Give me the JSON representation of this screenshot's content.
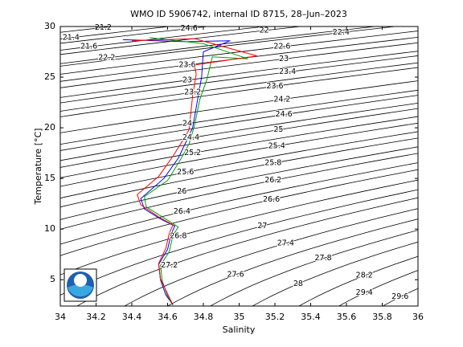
{
  "chart_data": {
    "type": "line",
    "title": "WMO ID 5906742, internal ID 8715, 28–Jun–2023",
    "x_label": "Salinity",
    "y_label": "Temperature [°C]",
    "xlim": [
      34,
      36
    ],
    "ylim": [
      2.4,
      30
    ],
    "xticks": [
      34,
      34.2,
      34.4,
      34.6,
      34.8,
      35,
      35.2,
      35.4,
      35.6,
      35.8,
      36
    ],
    "yticks": [
      5,
      10,
      15,
      20,
      25,
      30
    ],
    "series": [
      {
        "color": "#0000ff",
        "x": [
          34.35,
          34.7,
          34.95,
          34.8,
          34.79,
          34.77,
          34.74,
          34.7,
          34.66,
          34.58,
          34.45,
          34.47,
          34.56,
          34.64,
          34.62,
          34.6,
          34.55,
          34.56,
          34.59,
          34.63
        ],
        "values": [
          28.7,
          28.5,
          28.6,
          27.5,
          25,
          23,
          20,
          18.5,
          17,
          15,
          13,
          12,
          11,
          10.3,
          9.5,
          8,
          6.5,
          5,
          3.5,
          2.5
        ]
      },
      {
        "color": "#00a000",
        "x": [
          34.5,
          34.8,
          35.05,
          34.85,
          34.82,
          34.78,
          34.75,
          34.72,
          34.67,
          34.6,
          34.47,
          34.48,
          34.58,
          34.66,
          34.63,
          34.61,
          34.56,
          34.57,
          34.6,
          34.63
        ],
        "values": [
          28.9,
          28.3,
          26.8,
          27,
          24.8,
          22.8,
          20.2,
          18.4,
          16.8,
          14.8,
          13.2,
          12.2,
          11.1,
          10.2,
          9.4,
          7.8,
          6.4,
          4.9,
          3.4,
          2.5
        ]
      },
      {
        "color": "#ff0000",
        "x": [
          34.4,
          34.75,
          35.1,
          34.75,
          34.76,
          34.74,
          34.72,
          34.68,
          34.63,
          34.55,
          34.43,
          34.45,
          34.55,
          34.63,
          34.61,
          34.59,
          34.55,
          34.56,
          34.6,
          34.63
        ],
        "values": [
          28.6,
          28.8,
          27.1,
          26.2,
          25.3,
          23.2,
          19.8,
          18.6,
          17.2,
          15.2,
          13.4,
          12.4,
          11.2,
          10.4,
          9.6,
          8.1,
          6.6,
          5.1,
          3.6,
          2.5
        ]
      }
    ],
    "annotations": [
      {
        "text": "21.2",
        "x": 34.24,
        "y": 29.9
      },
      {
        "text": "21.4",
        "x": 34.06,
        "y": 28.9
      },
      {
        "text": "21.6",
        "x": 34.16,
        "y": 28.0
      },
      {
        "text": "22.2",
        "x": 34.26,
        "y": 26.9
      },
      {
        "text": "22",
        "x": 35.14,
        "y": 29.6
      },
      {
        "text": "22.4",
        "x": 35.57,
        "y": 29.4
      },
      {
        "text": "22.6",
        "x": 35.24,
        "y": 28.0
      },
      {
        "text": "23",
        "x": 35.25,
        "y": 26.8
      },
      {
        "text": "23.4",
        "x": 35.27,
        "y": 25.5
      },
      {
        "text": "23.6",
        "x": 35.2,
        "y": 24.1
      },
      {
        "text": "24.2",
        "x": 35.24,
        "y": 22.8
      },
      {
        "text": "24.6",
        "x": 35.25,
        "y": 21.3
      },
      {
        "text": "25",
        "x": 35.22,
        "y": 19.8
      },
      {
        "text": "25.4",
        "x": 35.21,
        "y": 18.2
      },
      {
        "text": "25.8",
        "x": 35.19,
        "y": 16.5
      },
      {
        "text": "26.2",
        "x": 35.19,
        "y": 14.8
      },
      {
        "text": "26.6",
        "x": 35.18,
        "y": 12.9
      },
      {
        "text": "27",
        "x": 35.13,
        "y": 10.3
      },
      {
        "text": "27.4",
        "x": 35.26,
        "y": 8.6
      },
      {
        "text": "27.8",
        "x": 35.47,
        "y": 7.1
      },
      {
        "text": "28.2",
        "x": 35.7,
        "y": 5.4
      },
      {
        "text": "28",
        "x": 35.33,
        "y": 4.6
      },
      {
        "text": "29.4",
        "x": 35.7,
        "y": 3.7
      },
      {
        "text": "29.6",
        "x": 35.9,
        "y": 3.3
      },
      {
        "text": "24.6",
        "x": 34.72,
        "y": 29.8
      },
      {
        "text": "23.6",
        "x": 34.71,
        "y": 26.2
      },
      {
        "text": "23",
        "x": 34.71,
        "y": 24.7
      },
      {
        "text": "23.2",
        "x": 34.74,
        "y": 23.5
      },
      {
        "text": "24",
        "x": 34.71,
        "y": 20.4
      },
      {
        "text": "24.4",
        "x": 34.73,
        "y": 19.0
      },
      {
        "text": "25.2",
        "x": 34.74,
        "y": 17.5
      },
      {
        "text": "25.6",
        "x": 34.7,
        "y": 15.6
      },
      {
        "text": "26",
        "x": 34.68,
        "y": 13.7
      },
      {
        "text": "26.4",
        "x": 34.68,
        "y": 11.7
      },
      {
        "text": "26.8",
        "x": 34.66,
        "y": 9.3
      },
      {
        "text": "27.2",
        "x": 34.61,
        "y": 6.4
      },
      {
        "text": "27.6",
        "x": 34.98,
        "y": 5.5
      }
    ]
  }
}
